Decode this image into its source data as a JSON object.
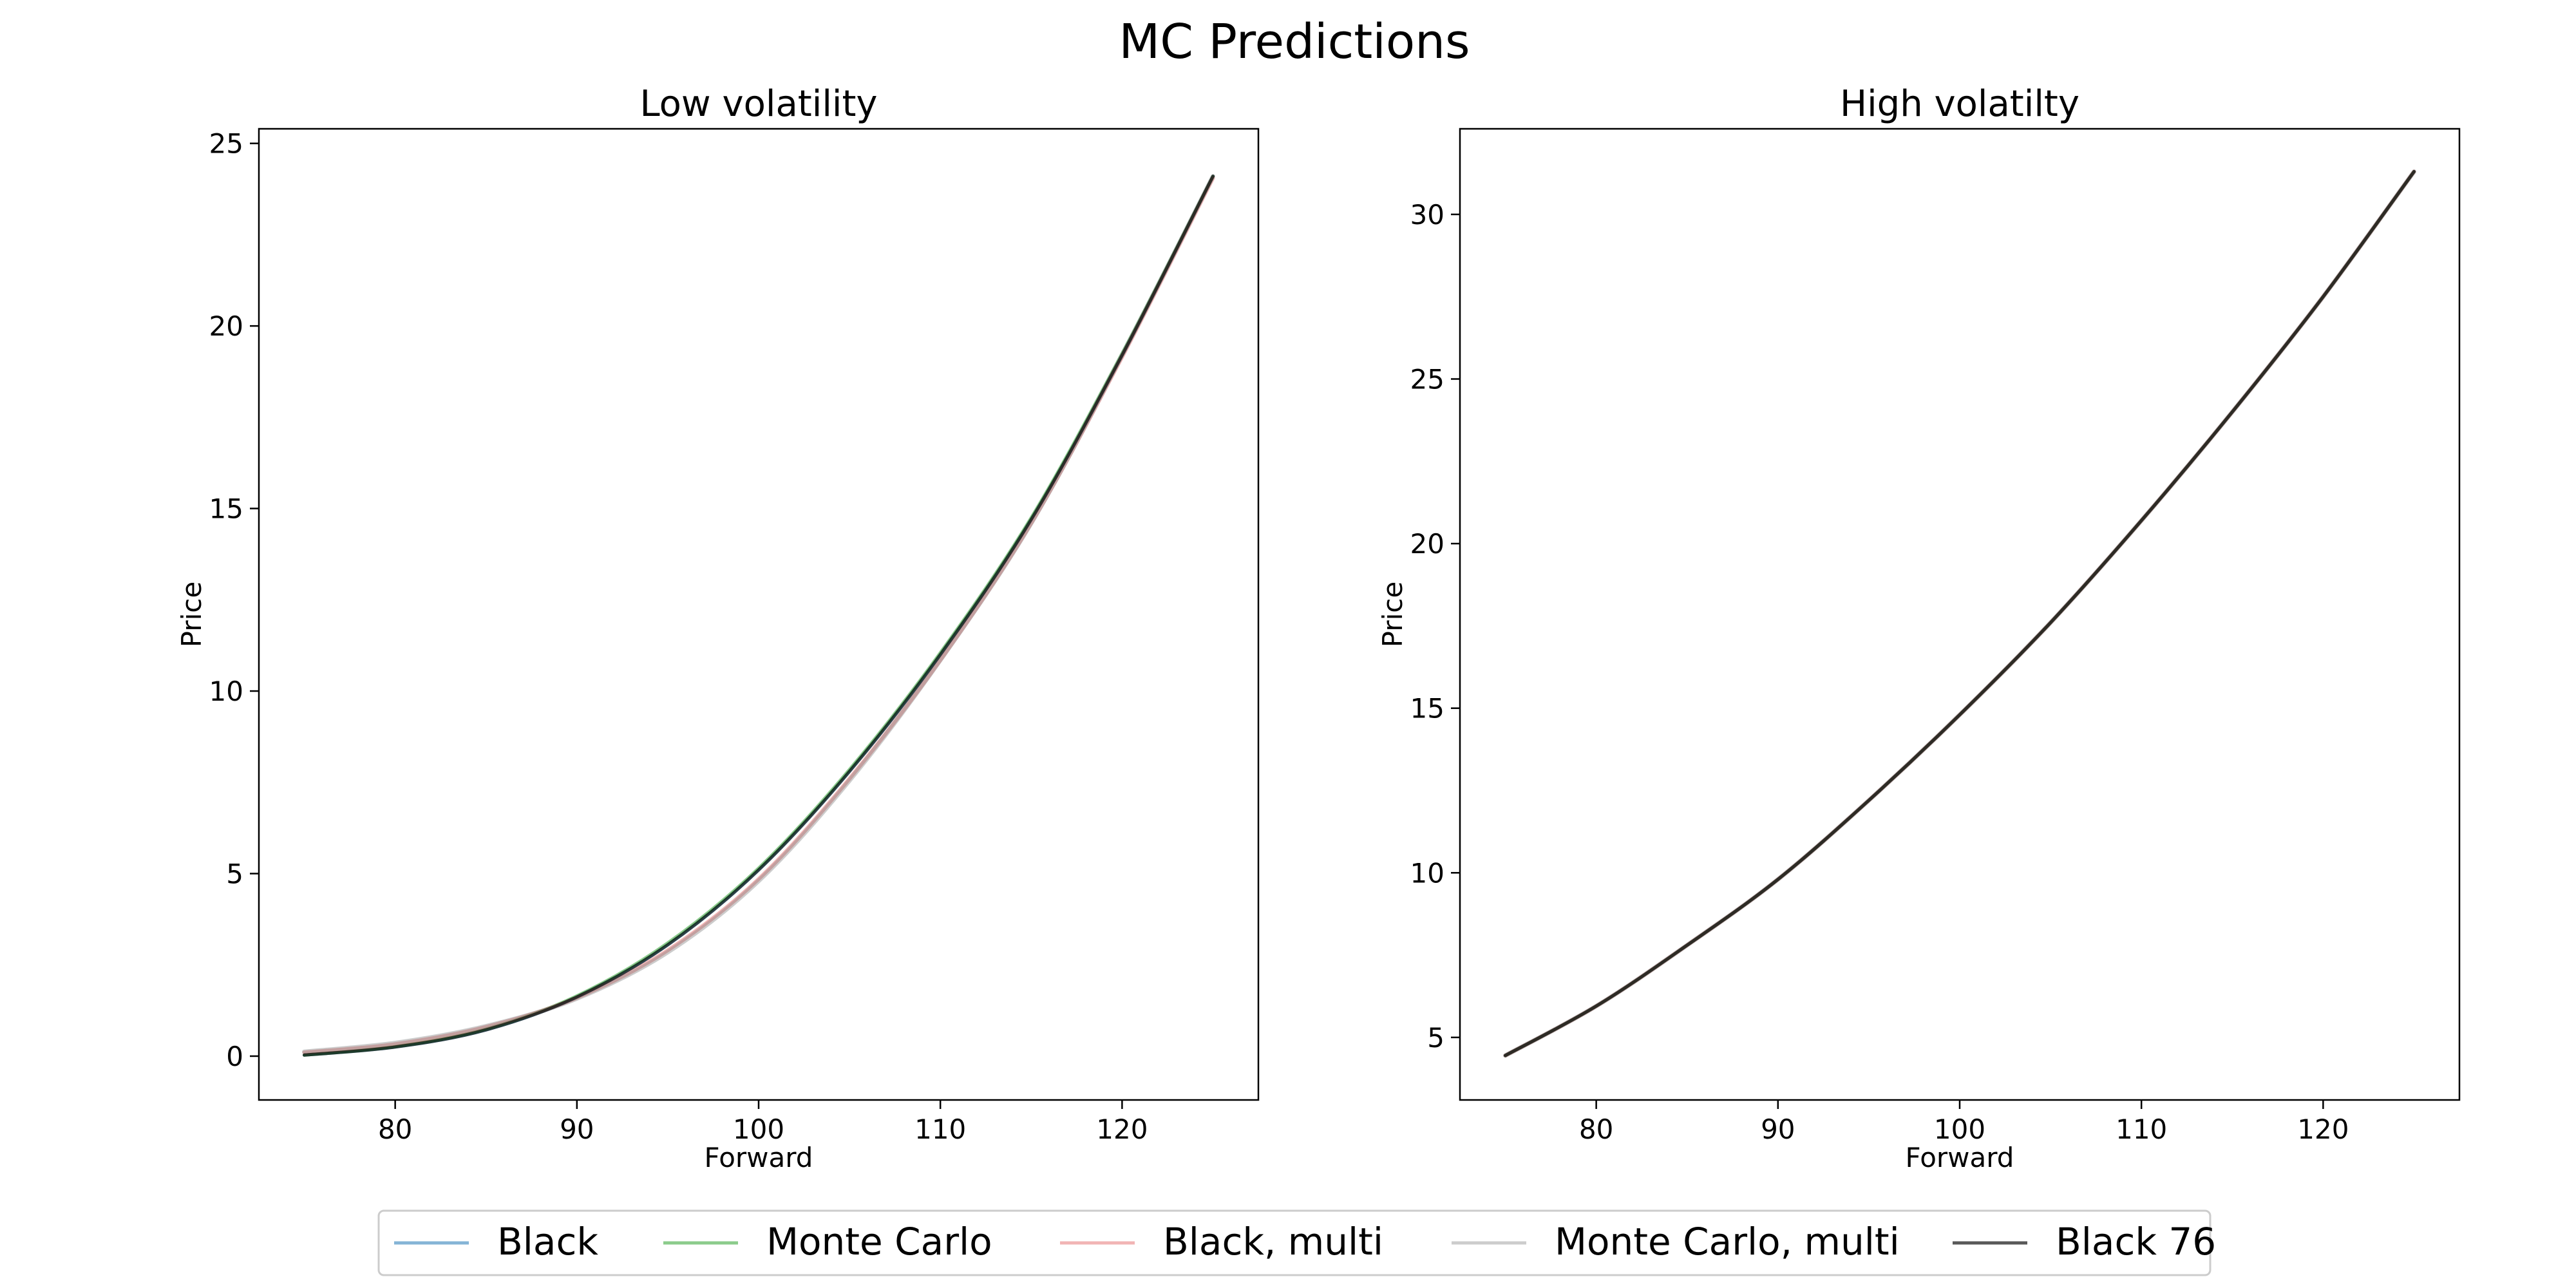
{
  "figure": {
    "suptitle": "MC Predictions"
  },
  "chart_data": [
    {
      "type": "line",
      "title": "Low volatility",
      "xlabel": "Forward",
      "ylabel": "Price",
      "xlim": [
        72.5,
        127.5
      ],
      "ylim": [
        -1.2,
        25.4
      ],
      "xticks": [
        80,
        90,
        100,
        110,
        120
      ],
      "yticks": [
        0,
        5,
        10,
        15,
        20,
        25
      ],
      "x": [
        75,
        80,
        85,
        90,
        95,
        100,
        105,
        110,
        115,
        120,
        125
      ],
      "series": [
        {
          "name": "Black",
          "color": "#1f77b4",
          "values": [
            0.03,
            0.25,
            0.72,
            1.62,
            3.05,
            5.1,
            7.8,
            11.0,
            14.7,
            19.2,
            24.1
          ]
        },
        {
          "name": "Monte Carlo",
          "color": "#2ca02c",
          "values": [
            0.03,
            0.26,
            0.74,
            1.65,
            3.1,
            5.15,
            7.85,
            11.05,
            14.75,
            19.25,
            24.1
          ]
        },
        {
          "name": "Black, multi",
          "color": "#d62728",
          "values": [
            0.1,
            0.33,
            0.8,
            1.6,
            2.9,
            4.85,
            7.6,
            10.85,
            14.6,
            19.15,
            24.05
          ]
        },
        {
          "name": "Monte Carlo, multi",
          "color": "#7f7f7f",
          "values": [
            0.12,
            0.36,
            0.82,
            1.58,
            2.85,
            4.8,
            7.55,
            10.85,
            14.6,
            19.2,
            24.1
          ]
        },
        {
          "name": "Black 76",
          "color": "#000000",
          "values": [
            0.03,
            0.25,
            0.72,
            1.62,
            3.05,
            5.1,
            7.8,
            11.0,
            14.7,
            19.2,
            24.1
          ]
        }
      ]
    },
    {
      "type": "line",
      "title": "High volatilty",
      "xlabel": "Forward",
      "ylabel": "Price",
      "xlim": [
        72.5,
        127.5
      ],
      "ylim": [
        3.1,
        32.6
      ],
      "xticks": [
        80,
        90,
        100,
        110,
        120
      ],
      "yticks": [
        5,
        10,
        15,
        20,
        25,
        30
      ],
      "x": [
        75,
        80,
        85,
        90,
        95,
        100,
        105,
        110,
        115,
        120,
        125
      ],
      "series": [
        {
          "name": "Black",
          "color": "#1f77b4",
          "values": [
            4.45,
            5.95,
            7.8,
            9.8,
            12.2,
            14.8,
            17.6,
            20.7,
            24.0,
            27.5,
            31.3
          ]
        },
        {
          "name": "Monte Carlo",
          "color": "#2ca02c",
          "values": [
            4.45,
            5.95,
            7.8,
            9.8,
            12.2,
            14.8,
            17.6,
            20.7,
            24.0,
            27.5,
            31.3
          ]
        },
        {
          "name": "Black, multi",
          "color": "#d62728",
          "values": [
            4.45,
            5.95,
            7.8,
            9.8,
            12.2,
            14.8,
            17.6,
            20.7,
            24.0,
            27.5,
            31.3
          ]
        },
        {
          "name": "Monte Carlo, multi",
          "color": "#7f7f7f",
          "values": [
            4.45,
            5.95,
            7.8,
            9.8,
            12.2,
            14.8,
            17.6,
            20.7,
            24.0,
            27.5,
            31.3
          ]
        },
        {
          "name": "Black 76",
          "color": "#000000",
          "values": [
            4.45,
            5.95,
            7.8,
            9.8,
            12.2,
            14.8,
            17.6,
            20.7,
            24.0,
            27.5,
            31.3
          ]
        }
      ]
    }
  ],
  "legend": {
    "placement": "bottom-center",
    "entries": [
      {
        "label": "Black",
        "color": "#1f77b4"
      },
      {
        "label": "Monte Carlo",
        "color": "#2ca02c"
      },
      {
        "label": "Black, multi",
        "color": "#d62728"
      },
      {
        "label": "Monte Carlo, multi",
        "color": "#7f7f7f"
      },
      {
        "label": "Black 76",
        "color": "#000000"
      }
    ]
  }
}
